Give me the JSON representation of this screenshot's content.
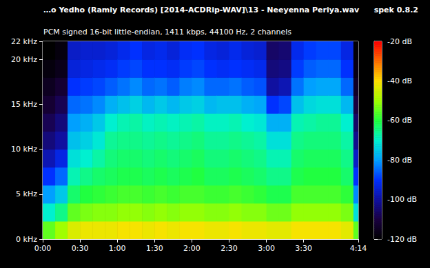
{
  "chart_data": {
    "type": "heatmap",
    "title": "…o Yedho (Ramiy Records) [2014-ACDRip-WAV]\\13 - Neeyenna Periya.wav",
    "subtitle": "PCM signed 16-bit little-endian, 1411 kbps, 44100 Hz, 2 channels",
    "annotations": [
      "spek 0.8.2"
    ],
    "grid": false,
    "xlim": [
      0,
      254
    ],
    "ylim": [
      0,
      22
    ],
    "xticks": [
      {
        "value": 0,
        "label": "0:00"
      },
      {
        "value": 30,
        "label": "0:30"
      },
      {
        "value": 60,
        "label": "1:00"
      },
      {
        "value": 90,
        "label": "1:30"
      },
      {
        "value": 120,
        "label": "2:00"
      },
      {
        "value": 150,
        "label": "2:30"
      },
      {
        "value": 180,
        "label": "3:00"
      },
      {
        "value": 210,
        "label": "3:30"
      },
      {
        "value": 254,
        "label": "4:14"
      }
    ],
    "yticks": [
      {
        "value": 0,
        "label": "0 kHz"
      },
      {
        "value": 5,
        "label": "5 kHz"
      },
      {
        "value": 10,
        "label": "10 kHz"
      },
      {
        "value": 15,
        "label": "15 kHz"
      },
      {
        "value": 20,
        "label": "20 kHz"
      },
      {
        "value": 22,
        "label": "22 kHz"
      }
    ],
    "x_bins": [
      0,
      10,
      20,
      30,
      40,
      50,
      60,
      70,
      80,
      90,
      100,
      110,
      120,
      130,
      140,
      150,
      160,
      170,
      180,
      190,
      200,
      210,
      220,
      230,
      240,
      250,
      254
    ],
    "y_bins": [
      0,
      2,
      4,
      6,
      8,
      10,
      12,
      14,
      16,
      18,
      20,
      22
    ],
    "values": [
      [
        -55,
        -70,
        -80,
        -90,
        -98,
        -104,
        -108,
        -112,
        -115,
        -118,
        -120
      ],
      [
        -50,
        -65,
        -75,
        -85,
        -93,
        -100,
        -104,
        -108,
        -112,
        -116,
        -118
      ],
      [
        -44,
        -55,
        -63,
        -68,
        -72,
        -76,
        -80,
        -85,
        -90,
        -94,
        -96
      ],
      [
        -42,
        -53,
        -60,
        -65,
        -70,
        -74,
        -78,
        -84,
        -89,
        -93,
        -95
      ],
      [
        -42,
        -52,
        -59,
        -63,
        -67,
        -71,
        -75,
        -82,
        -88,
        -92,
        -95
      ],
      [
        -42,
        -52,
        -58,
        -62,
        -64,
        -66,
        -70,
        -78,
        -86,
        -91,
        -94
      ],
      [
        -41,
        -51,
        -57,
        -61,
        -63,
        -65,
        -68,
        -76,
        -84,
        -89,
        -92
      ],
      [
        -41,
        -51,
        -57,
        -61,
        -63,
        -65,
        -67,
        -74,
        -82,
        -88,
        -90
      ],
      [
        -42,
        -52,
        -58,
        -62,
        -64,
        -66,
        -69,
        -77,
        -85,
        -90,
        -93
      ],
      [
        -41,
        -51,
        -57,
        -61,
        -63,
        -65,
        -68,
        -75,
        -84,
        -90,
        -92
      ],
      [
        -42,
        -52,
        -58,
        -62,
        -64,
        -66,
        -69,
        -77,
        -86,
        -91,
        -94
      ],
      [
        -41,
        -51,
        -57,
        -61,
        -63,
        -65,
        -68,
        -75,
        -83,
        -89,
        -91
      ],
      [
        -41,
        -51,
        -57,
        -60,
        -62,
        -64,
        -67,
        -74,
        -82,
        -88,
        -90
      ],
      [
        -42,
        -52,
        -58,
        -62,
        -64,
        -66,
        -69,
        -77,
        -85,
        -90,
        -93
      ],
      [
        -42,
        -52,
        -58,
        -62,
        -64,
        -66,
        -69,
        -76,
        -85,
        -91,
        -94
      ],
      [
        -41,
        -51,
        -57,
        -61,
        -63,
        -65,
        -68,
        -76,
        -84,
        -90,
        -92
      ],
      [
        -42,
        -52,
        -58,
        -62,
        -64,
        -66,
        -70,
        -78,
        -86,
        -91,
        -94
      ],
      [
        -42,
        -52,
        -59,
        -63,
        -65,
        -67,
        -71,
        -79,
        -87,
        -92,
        -95
      ],
      [
        -43,
        -54,
        -61,
        -65,
        -68,
        -72,
        -78,
        -90,
        -100,
        -104,
        -106
      ],
      [
        -43,
        -54,
        -61,
        -65,
        -68,
        -72,
        -78,
        -88,
        -98,
        -103,
        -105
      ],
      [
        -41,
        -51,
        -57,
        -61,
        -63,
        -65,
        -68,
        -76,
        -84,
        -89,
        -92
      ],
      [
        -41,
        -51,
        -57,
        -60,
        -62,
        -64,
        -67,
        -73,
        -80,
        -86,
        -89
      ],
      [
        -41,
        -51,
        -57,
        -60,
        -62,
        -64,
        -66,
        -72,
        -79,
        -85,
        -88
      ],
      [
        -41,
        -51,
        -57,
        -60,
        -62,
        -64,
        -66,
        -72,
        -79,
        -85,
        -88
      ],
      [
        -43,
        -53,
        -59,
        -63,
        -65,
        -67,
        -70,
        -77,
        -85,
        -90,
        -93
      ],
      [
        -55,
        -72,
        -82,
        -90,
        -96,
        -102,
        -106,
        -110,
        -114,
        -117,
        -119
      ]
    ],
    "colorbar_range": [
      -120,
      -20
    ],
    "colorbar_ticks": [
      {
        "value": -20,
        "label": "-20 dB"
      },
      {
        "value": -40,
        "label": "-40 dB"
      },
      {
        "value": -60,
        "label": "-60 dB"
      },
      {
        "value": -80,
        "label": "-80 dB"
      },
      {
        "value": -100,
        "label": "-100 dB"
      },
      {
        "value": -120,
        "label": "-120 dB"
      }
    ]
  }
}
